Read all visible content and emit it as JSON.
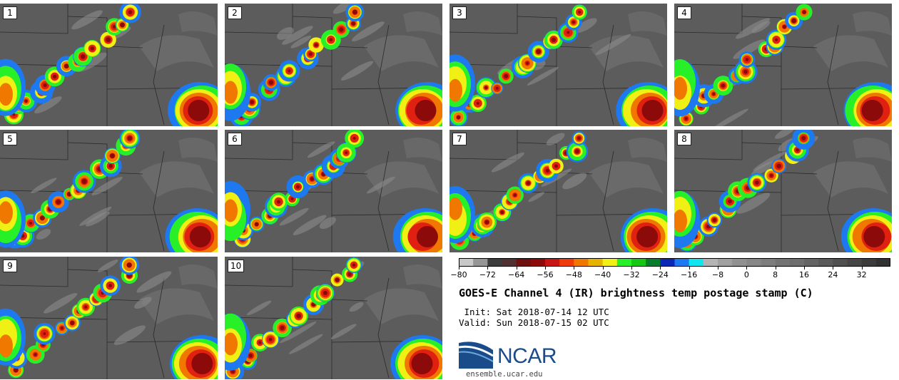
{
  "panels": [
    {
      "label": "1",
      "storm": 1
    },
    {
      "label": "2",
      "storm": 2
    },
    {
      "label": "3",
      "storm": 3
    },
    {
      "label": "4",
      "storm": 4
    },
    {
      "label": "5",
      "storm": 5
    },
    {
      "label": "6",
      "storm": 6
    },
    {
      "label": "7",
      "storm": 7
    },
    {
      "label": "8",
      "storm": 8
    },
    {
      "label": "9",
      "storm": 9
    },
    {
      "label": "10",
      "storm": 10
    }
  ],
  "colorbar": {
    "ticks": [
      "−80",
      "−72",
      "−64",
      "−56",
      "−48",
      "−40",
      "−32",
      "−24",
      "−16",
      "−8",
      "0",
      "8",
      "16",
      "24",
      "32"
    ],
    "tick_values": [
      -80,
      -72,
      -64,
      -56,
      -48,
      -40,
      -32,
      -24,
      -16,
      -8,
      0,
      8,
      16,
      24,
      32
    ],
    "range": [
      -80,
      40
    ],
    "step": 4,
    "colors": [
      "#c8c8c8",
      "#969696",
      "#3c3c3c",
      "#503030",
      "#6e1010",
      "#8c0a0a",
      "#c81414",
      "#f03c0a",
      "#f07800",
      "#e6b400",
      "#f0f014",
      "#28f028",
      "#14c814",
      "#0a7d2d",
      "#0a28b4",
      "#1e78f0",
      "#14e6f0",
      "#b4b4b4",
      "#a0a0a0",
      "#919191",
      "#878787",
      "#7d7d7d",
      "#737373",
      "#6e6e6e",
      "#646464",
      "#5a5a5a",
      "#505050",
      "#464646",
      "#3c3c3c",
      "#323232"
    ]
  },
  "title": "GOES-E Channel 4 (IR) brightness temp postage stamp (C)",
  "init": " Init: Sat 2018-07-14 12 UTC",
  "valid": "Valid: Sun 2018-07-15 02 UTC",
  "logo": {
    "text": "NCAR",
    "site": "ensemble.ucar.edu",
    "color": "#1a4c8a"
  }
}
